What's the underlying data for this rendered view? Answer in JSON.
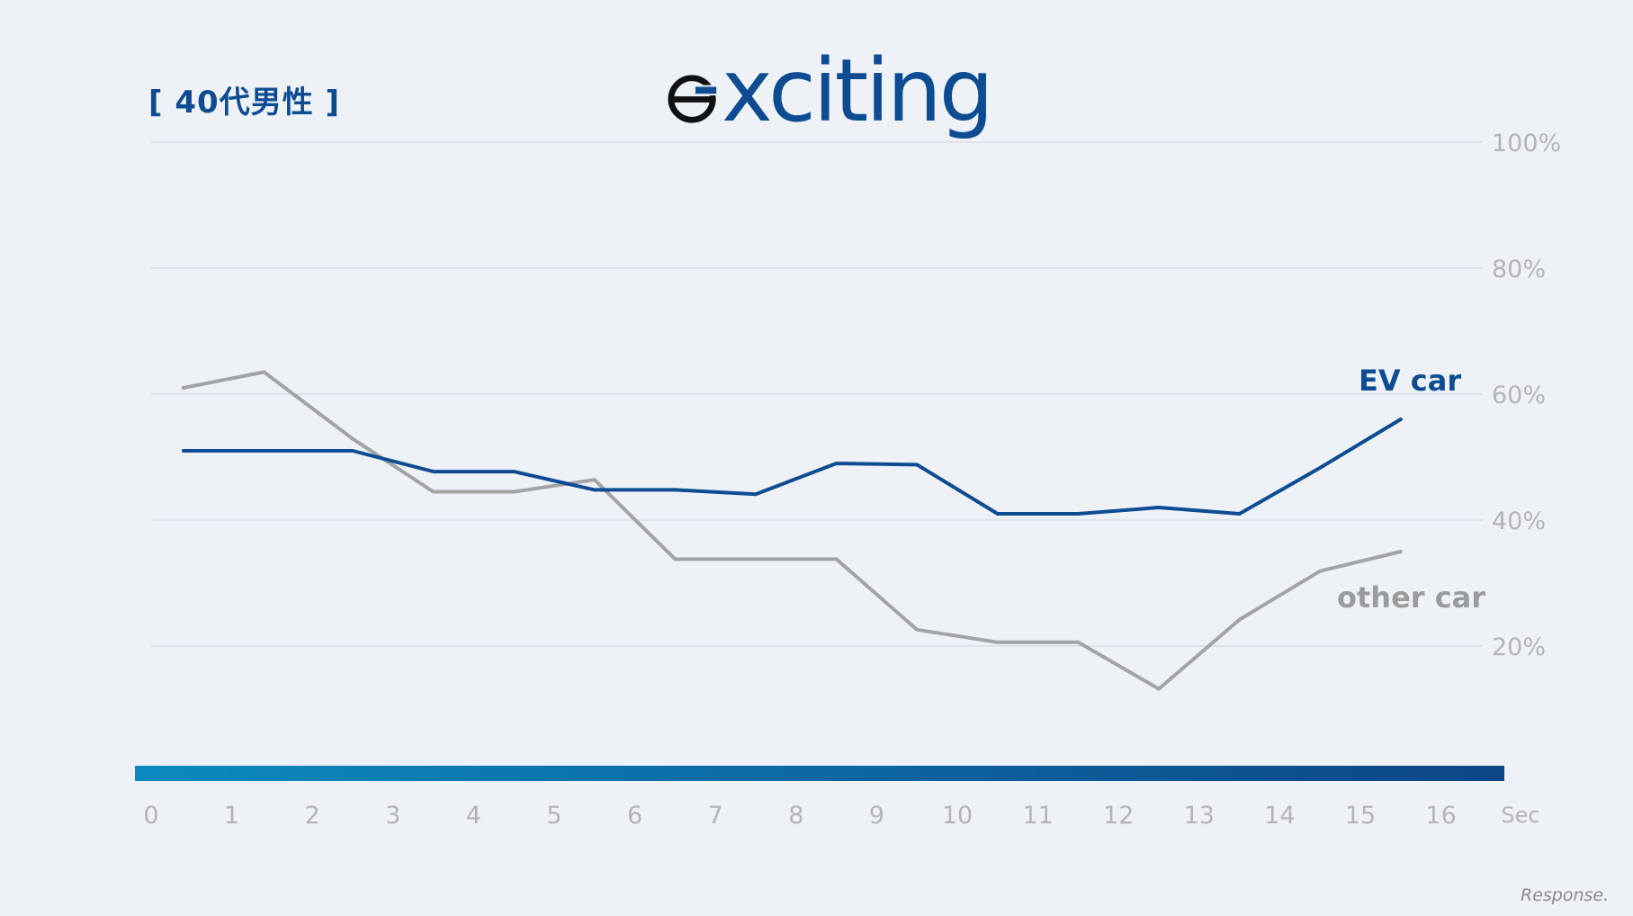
{
  "group_label": "[ 40代男性 ]",
  "logo": {
    "text": "xciting",
    "icon": "e-mark-logo-icon"
  },
  "watermark": "Response.",
  "colors": {
    "background": "#eef2f7",
    "ev_series": "#0e4c92",
    "other_series": "#a3a3a3",
    "axis_text": "#b4b4b4",
    "gridline": "#d3d8de",
    "timebar_start": "#0c8ac0",
    "timebar_end": "#0d4585"
  },
  "chart_data": {
    "type": "line",
    "x_unit": "Sec",
    "x_ticks": [
      0,
      1,
      2,
      3,
      4,
      5,
      6,
      7,
      8,
      9,
      10,
      11,
      12,
      13,
      14,
      15,
      16
    ],
    "y_ticks": [
      "20%",
      "40%",
      "60%",
      "80%",
      "100%"
    ],
    "y_tick_values": [
      20,
      40,
      60,
      80,
      100
    ],
    "ylim": [
      0,
      100
    ],
    "xlim": [
      0,
      17
    ],
    "grid": true,
    "series": [
      {
        "name": "EV car",
        "color": "#0e4c92",
        "x": [
          0.4,
          1.4,
          2.5,
          3.5,
          4.5,
          5.5,
          6.5,
          7.5,
          8.5,
          9.5,
          10.5,
          11.5,
          12.5,
          13.5,
          14.5,
          15.5
        ],
        "values": [
          51,
          51,
          51,
          47.7,
          47.7,
          44.8,
          44.8,
          44.1,
          49,
          48.8,
          41,
          41,
          42,
          41,
          48.3,
          56
        ]
      },
      {
        "name": "other car",
        "color": "#a3a3a3",
        "x": [
          0.4,
          1.4,
          2.5,
          3.5,
          4.5,
          5.5,
          6.5,
          7.5,
          8.5,
          9.5,
          10.5,
          11.5,
          12.5,
          13.5,
          14.5,
          15.5
        ],
        "values": [
          61,
          63.5,
          52.9,
          44.5,
          44.5,
          46.4,
          33.8,
          33.8,
          33.8,
          22.6,
          20.6,
          20.6,
          13.2,
          24.2,
          31.9,
          35
        ]
      }
    ]
  }
}
